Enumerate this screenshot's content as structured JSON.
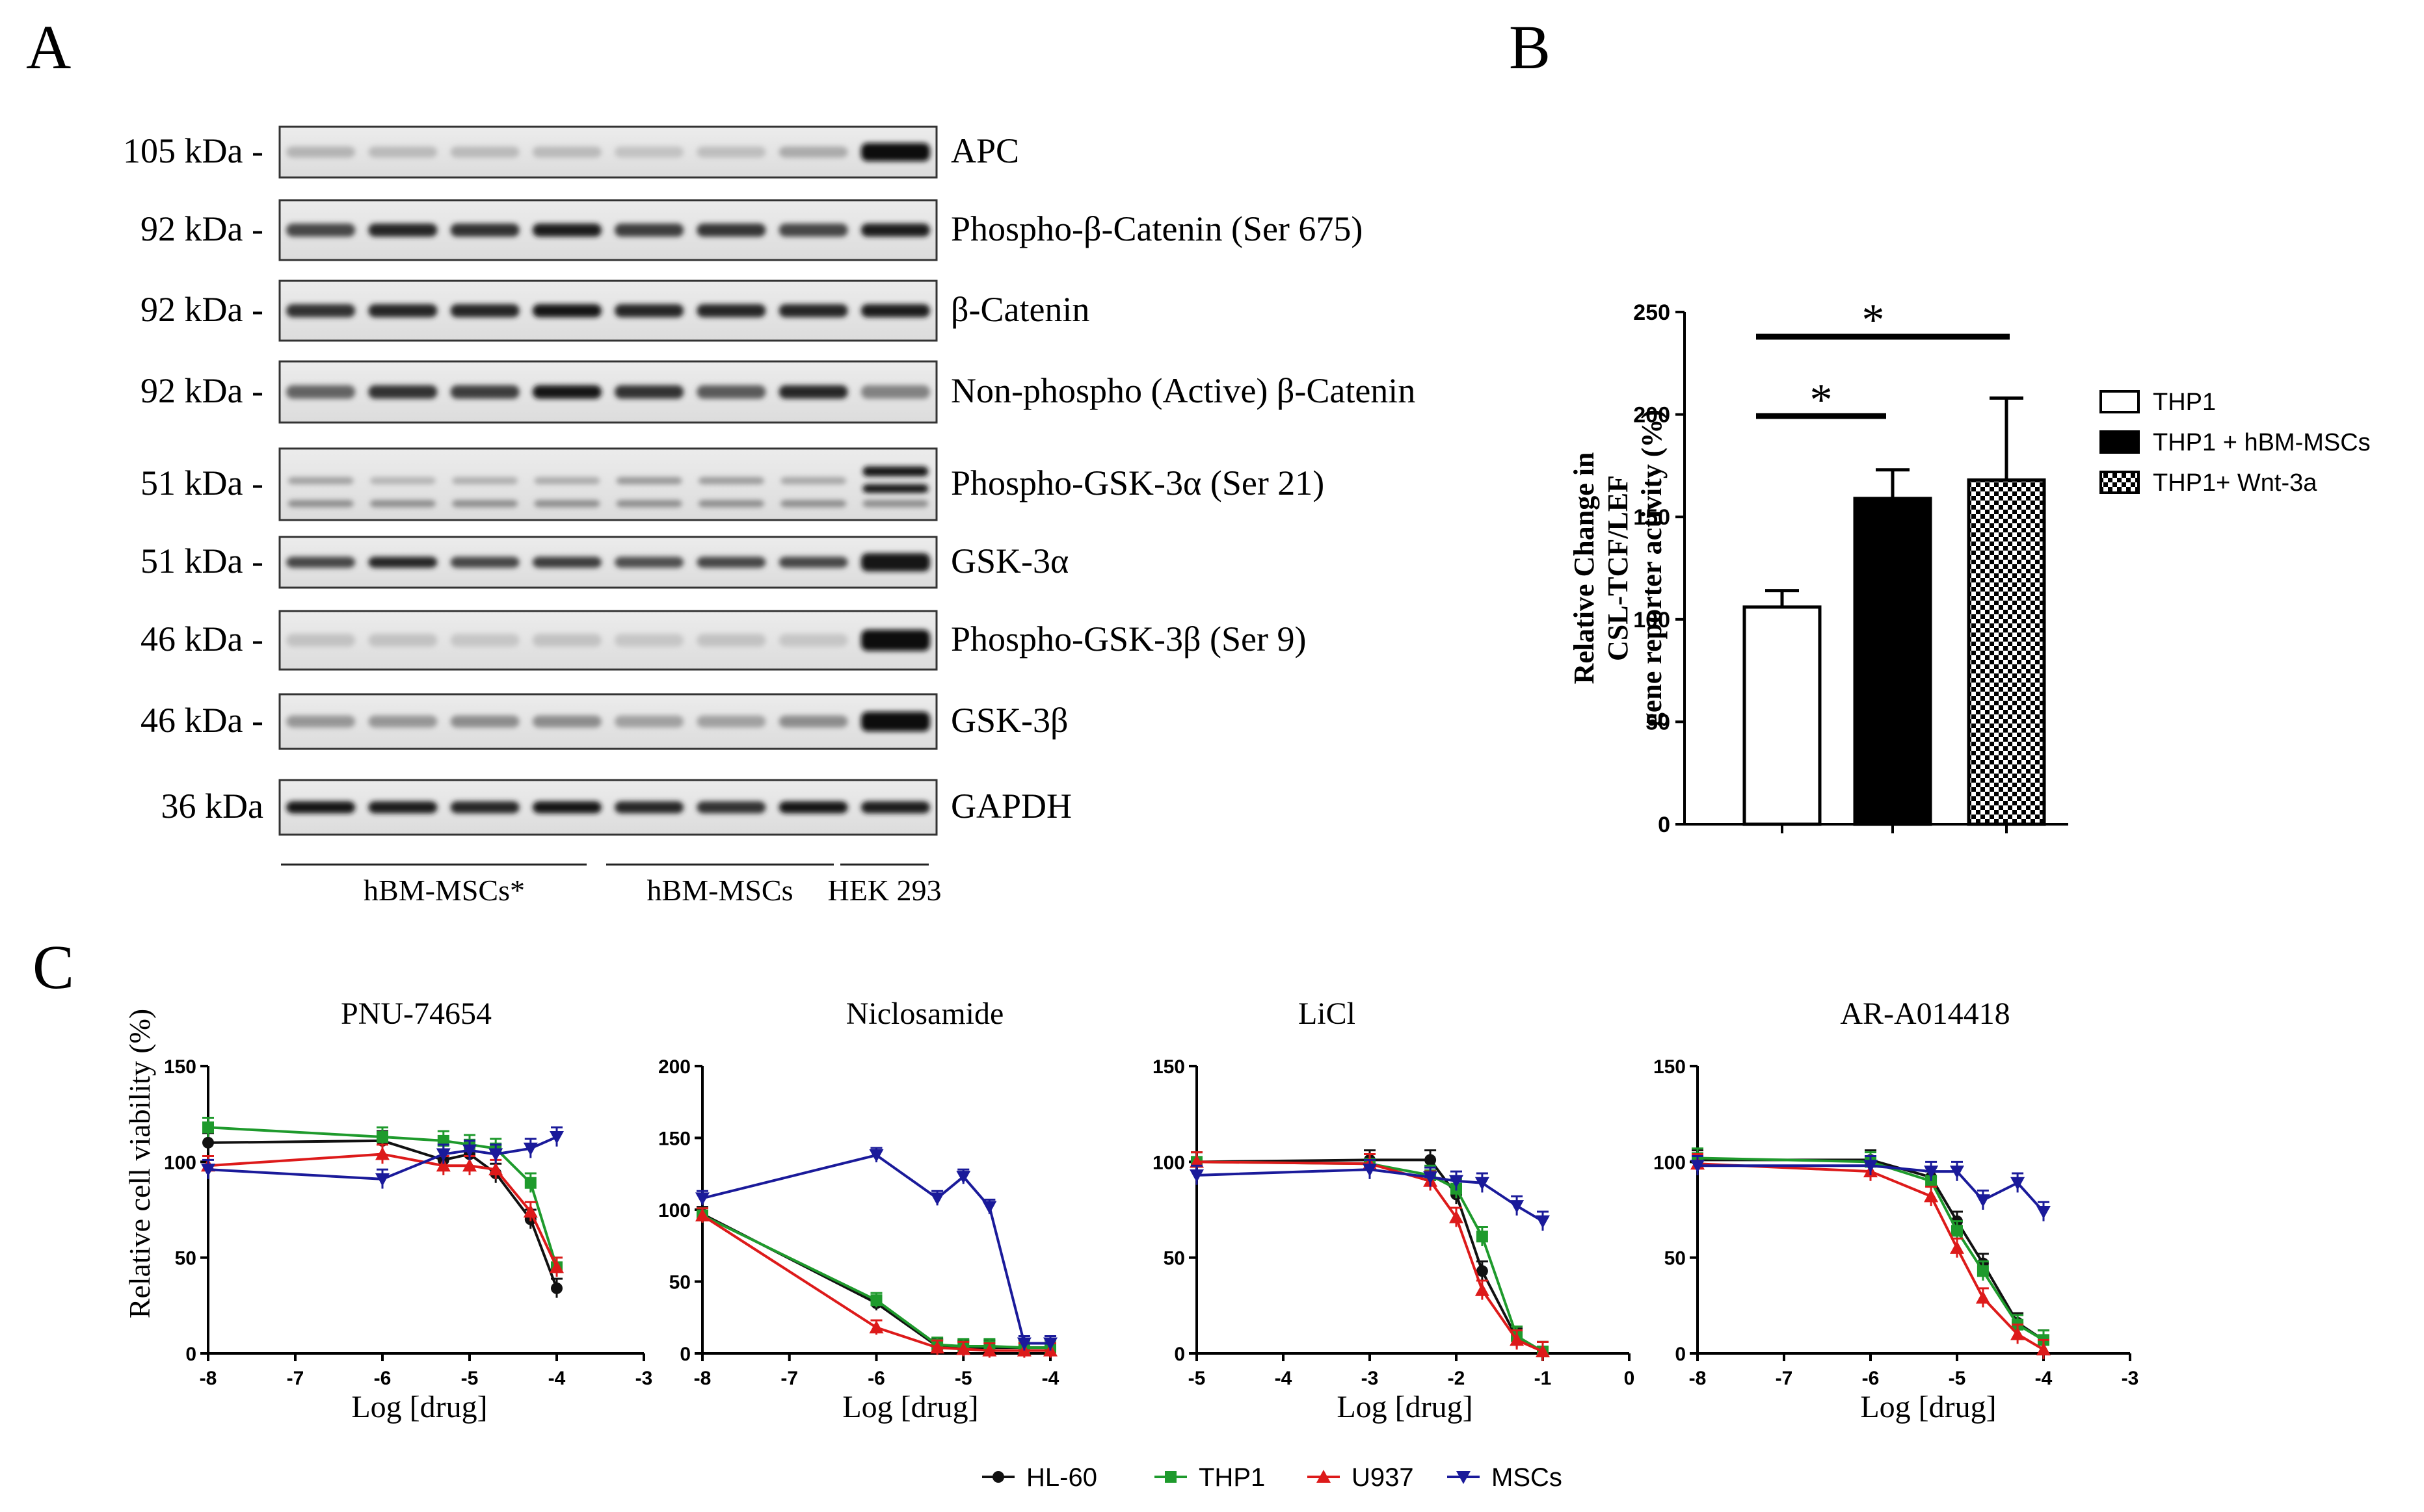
{
  "colors": {
    "HL-60": "#111111",
    "THP1": "#1e9a2c",
    "U937": "#dd1a1a",
    "MSCs": "#1a1a9a"
  },
  "panel_a": {
    "panel_label": "A",
    "blots": [
      {
        "size": "105 kDa",
        "protein": "APC"
      },
      {
        "size": "92 kDa",
        "protein": "Phospho-β-Catenin (Ser 675)"
      },
      {
        "size": "92 kDa",
        "protein": "β-Catenin"
      },
      {
        "size": "92 kDa",
        "protein": "Non-phospho (Active) β-Catenin"
      },
      {
        "size": "51 kDa",
        "protein": "Phospho-GSK-3α (Ser 21)"
      },
      {
        "size": "51 kDa",
        "protein": "GSK-3α"
      },
      {
        "size": "46 kDa",
        "protein": "Phospho-GSK-3β (Ser 9)"
      },
      {
        "size": "46 kDa",
        "protein": "GSK-3β"
      },
      {
        "size": "36 kDa",
        "protein": "GAPDH"
      }
    ],
    "groups": [
      {
        "label": "hBM-MSCs*"
      },
      {
        "label": "hBM-MSCs"
      },
      {
        "label": "HEK 293"
      }
    ]
  },
  "panel_b": {
    "panel_label": "B",
    "chart_data": {
      "type": "bar",
      "categories": [
        "THP1",
        "THP1 + hBM-MSCs",
        "THP1+ Wnt-3a"
      ],
      "values": [
        106,
        159,
        168
      ],
      "errors": [
        8,
        14,
        40
      ],
      "ylabel_lines": [
        "Relative Change in",
        "CSL-TCF/LEF",
        "gene reporter activity (%)"
      ],
      "ylim": [
        0,
        250
      ],
      "yticks": [
        "0",
        "50",
        "100",
        "150",
        "200",
        "250"
      ],
      "legend": [
        "THP1",
        "THP1 + hBM-MSCs",
        "THP1+ Wnt-3a"
      ],
      "fills": [
        "white",
        "black",
        "checker"
      ],
      "significance": [
        {
          "from": "THP1",
          "to": "THP1 + hBM-MSCs",
          "label": "*"
        },
        {
          "from": "THP1",
          "to": "THP1+ Wnt-3a",
          "label": "*"
        }
      ]
    }
  },
  "panel_c": {
    "panel_label": "C",
    "ylabel": "Relative cell viability (%)",
    "legend": [
      "HL-60",
      "THP1",
      "U937",
      "MSCs"
    ],
    "chart_data": [
      {
        "type": "line",
        "title": "PNU-74654",
        "xlabel": "Log [drug]",
        "xlim": [
          -8,
          -3
        ],
        "ylim": [
          0,
          150
        ],
        "xticks": [
          "-8",
          "-7",
          "-6",
          "-5",
          "-4",
          "-3"
        ],
        "yticks": [
          "0",
          "50",
          "100",
          "150"
        ],
        "x": [
          -8,
          -6,
          -5.3,
          -5,
          -4.7,
          -4.3,
          -4
        ],
        "series": [
          {
            "name": "HL-60",
            "values": [
              110,
              111,
              101,
              104,
              94,
              70,
              34
            ]
          },
          {
            "name": "THP1",
            "values": [
              118,
              113,
              111,
              109,
              107,
              89,
              45
            ]
          },
          {
            "name": "U937",
            "values": [
              98,
              104,
              98,
              98,
              96,
              74,
              45
            ]
          },
          {
            "name": "MSCs",
            "x": [
              -8,
              -6,
              -5.3,
              -5,
              -4.7,
              -4.3,
              -4
            ],
            "values": [
              96,
              91,
              104,
              106,
              104,
              107,
              113
            ]
          }
        ]
      },
      {
        "type": "line",
        "title": "Niclosamide",
        "xlabel": "Log [drug]",
        "xlim": [
          -8,
          -4
        ],
        "ylim": [
          0,
          200
        ],
        "xticks": [
          "-8",
          "-7",
          "-6",
          "-5",
          "-4"
        ],
        "yticks": [
          "0",
          "50",
          "100",
          "150",
          "200"
        ],
        "x": [
          -8,
          -6,
          -5.3,
          -5,
          -4.7,
          -4.3,
          -4
        ],
        "series": [
          {
            "name": "HL-60",
            "values": [
              97,
              35,
              5,
              4,
              4,
              4,
              4
            ]
          },
          {
            "name": "THP1",
            "values": [
              96,
              37,
              6,
              5,
              5,
              4,
              4
            ]
          },
          {
            "name": "U937",
            "values": [
              96,
              18,
              4,
              3,
              2,
              2,
              2
            ]
          },
          {
            "name": "MSCs",
            "values": [
              108,
              138,
              108,
              123,
              102,
              7,
              7
            ]
          }
        ]
      },
      {
        "type": "line",
        "title": "LiCl",
        "xlabel": "Log [drug]",
        "xlim": [
          -5,
          0
        ],
        "ylim": [
          0,
          150
        ],
        "xticks": [
          "-5",
          "-4",
          "-3",
          "-2",
          "-1",
          "0"
        ],
        "yticks": [
          "0",
          "50",
          "100",
          "150"
        ],
        "x": [
          -5,
          -3,
          -2.3,
          -2,
          -1.7,
          -1.3,
          -1
        ],
        "series": [
          {
            "name": "HL-60",
            "values": [
              100,
              101,
              101,
              83,
              43,
              8,
              1
            ]
          },
          {
            "name": "THP1",
            "values": [
              100,
              99,
              93,
              86,
              61,
              9,
              1
            ]
          },
          {
            "name": "U937",
            "values": [
              100,
              99,
              90,
              71,
              33,
              7,
              1
            ]
          },
          {
            "name": "MSCs",
            "values": [
              93,
              96,
              92,
              90,
              89,
              77,
              69
            ]
          }
        ]
      },
      {
        "type": "line",
        "title": "AR-A014418",
        "xlabel": "Log [drug]",
        "xlim": [
          -8,
          -3
        ],
        "ylim": [
          0,
          150
        ],
        "xticks": [
          "-8",
          "-7",
          "-6",
          "-5",
          "-4",
          "-3"
        ],
        "yticks": [
          "0",
          "50",
          "100",
          "150"
        ],
        "x": [
          -8,
          -6,
          -5.3,
          -5,
          -4.7,
          -4.3,
          -4
        ],
        "series": [
          {
            "name": "HL-60",
            "values": [
              101,
              101,
              92,
              69,
              47,
              16,
              7
            ]
          },
          {
            "name": "THP1",
            "values": [
              102,
              100,
              90,
              64,
              43,
              15,
              7
            ]
          },
          {
            "name": "U937",
            "values": [
              99,
              95,
              82,
              55,
              29,
              10,
              2
            ]
          },
          {
            "name": "MSCs",
            "values": [
              98,
              98,
              95,
              95,
              80,
              89,
              74
            ]
          }
        ]
      }
    ]
  }
}
